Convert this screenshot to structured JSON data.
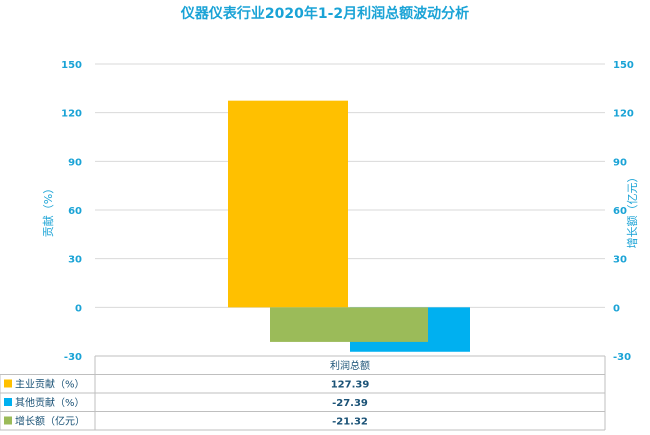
{
  "chart_data": {
    "type": "bar",
    "title": "仪器仪表行业2020年1-2月利润总额波动分析",
    "categories": [
      "利润总额"
    ],
    "left_axis": {
      "label": "贡献（%）",
      "range": [
        -30,
        150
      ],
      "ticks": [
        -30,
        0,
        30,
        60,
        90,
        120,
        150
      ]
    },
    "right_axis": {
      "label": "增长额（亿元）",
      "range": [
        -30,
        150
      ],
      "ticks": [
        -30,
        0,
        30,
        60,
        90,
        120,
        150
      ]
    },
    "grid": true,
    "series": [
      {
        "name": "主业贡献（%）",
        "values": [
          127.39
        ],
        "display": "127.39",
        "color": "#ffc000",
        "axis": "left"
      },
      {
        "name": "其他贡献（%）",
        "values": [
          -27.39
        ],
        "display": "-27.39",
        "color": "#00b0f0",
        "axis": "left"
      },
      {
        "name": "增长额（亿元）",
        "values": [
          -21.32
        ],
        "display": "-21.32",
        "color": "#9bbb59",
        "axis": "right"
      }
    ],
    "legend": "data-table-bottom"
  }
}
